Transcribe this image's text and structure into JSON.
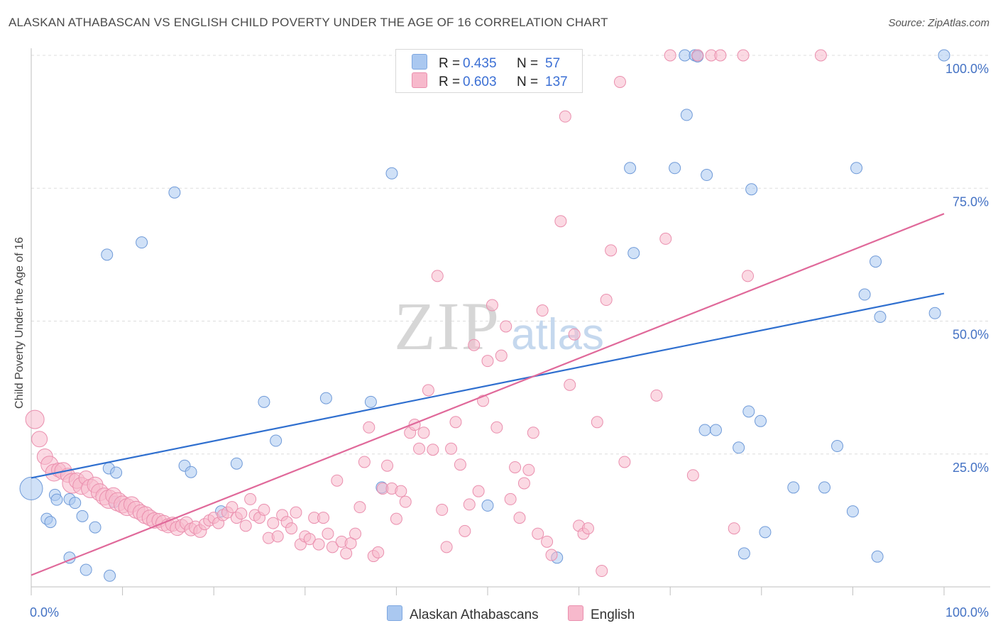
{
  "title": "ALASKAN ATHABASCAN VS ENGLISH CHILD POVERTY UNDER THE AGE OF 16 CORRELATION CHART",
  "source": "Source: ZipAtlas.com",
  "watermark": {
    "zip": "ZIP",
    "atlas": "atlas"
  },
  "legend": {
    "rows": [
      {
        "r_label": "R =",
        "r_value": "0.435",
        "n_label": "N =",
        "n_value": "57",
        "color": "#aac8f0",
        "border": "#7ea7e0"
      },
      {
        "r_label": "R =",
        "r_value": "0.603",
        "n_label": "N =",
        "n_value": "137",
        "color": "#f7b9cc",
        "border": "#ea8fae"
      }
    ]
  },
  "bottom_legend": [
    {
      "label": "Alaskan Athabascans",
      "color": "#aac8f0",
      "border": "#7ea7e0"
    },
    {
      "label": "English",
      "color": "#f7b9cc",
      "border": "#ea8fae"
    }
  ],
  "chart_data": {
    "type": "scatter",
    "xlabel": "",
    "ylabel": "Child Poverty Under the Age of 16",
    "xlim": [
      0,
      100
    ],
    "ylim": [
      0,
      100
    ],
    "x_tick_labels": [
      "0.0%",
      "100.0%"
    ],
    "y_tick_labels": [
      "25.0%",
      "50.0%",
      "75.0%",
      "100.0%"
    ],
    "y_ticks": [
      25,
      50,
      75,
      100
    ],
    "grid": true,
    "series": [
      {
        "name": "Alaskan Athabascans",
        "color": "#aac8f0",
        "stroke": "#6f9ad8",
        "line_color": "#2f6fcf",
        "trend": {
          "x": [
            0,
            100
          ],
          "y": [
            20.5,
            55.2
          ]
        },
        "points": [
          [
            0.0,
            18.5,
            16
          ],
          [
            1.7,
            12.8,
            8
          ],
          [
            2.1,
            12.2,
            8
          ],
          [
            2.6,
            17.3,
            8
          ],
          [
            2.8,
            16.4,
            8
          ],
          [
            4.2,
            5.5,
            8
          ],
          [
            4.2,
            16.5,
            8
          ],
          [
            4.8,
            15.8,
            8
          ],
          [
            5.6,
            13.3,
            8
          ],
          [
            6.0,
            3.2,
            8
          ],
          [
            7.0,
            11.2,
            8
          ],
          [
            8.5,
            22.3,
            8
          ],
          [
            8.3,
            62.5,
            8
          ],
          [
            8.6,
            2.1,
            8
          ],
          [
            9.1,
            16.0,
            8
          ],
          [
            9.3,
            21.5,
            8
          ],
          [
            12.1,
            64.8,
            8
          ],
          [
            15.7,
            74.2,
            8
          ],
          [
            16.8,
            22.8,
            8
          ],
          [
            17.5,
            21.6,
            8
          ],
          [
            20.8,
            14.2,
            8
          ],
          [
            22.5,
            23.2,
            8
          ],
          [
            25.5,
            34.8,
            8
          ],
          [
            26.8,
            27.5,
            8
          ],
          [
            32.3,
            35.5,
            8
          ],
          [
            37.2,
            34.8,
            8
          ],
          [
            38.4,
            18.7,
            8
          ],
          [
            39.5,
            77.8,
            8
          ],
          [
            50.0,
            15.3,
            8
          ],
          [
            57.6,
            5.5,
            8
          ],
          [
            65.6,
            78.8,
            8
          ],
          [
            66.0,
            62.8,
            8
          ],
          [
            70.5,
            78.8,
            8
          ],
          [
            71.6,
            100.0,
            8
          ],
          [
            71.8,
            88.8,
            8
          ],
          [
            72.7,
            100.0,
            8
          ],
          [
            73.0,
            100.0,
            8
          ],
          [
            73.0,
            99.8,
            8
          ],
          [
            73.8,
            29.5,
            8
          ],
          [
            74.0,
            77.5,
            8
          ],
          [
            75.0,
            29.5,
            8
          ],
          [
            77.5,
            26.2,
            8
          ],
          [
            78.1,
            6.3,
            8
          ],
          [
            78.6,
            33.0,
            8
          ],
          [
            78.9,
            74.8,
            8
          ],
          [
            79.9,
            31.2,
            8
          ],
          [
            80.4,
            10.3,
            8
          ],
          [
            83.5,
            18.7,
            8
          ],
          [
            86.9,
            18.7,
            8
          ],
          [
            88.3,
            26.5,
            8
          ],
          [
            90.0,
            14.2,
            8
          ],
          [
            90.4,
            78.8,
            8
          ],
          [
            91.3,
            55.0,
            8
          ],
          [
            92.5,
            61.2,
            8
          ],
          [
            92.7,
            5.7,
            8
          ],
          [
            93.0,
            50.8,
            8
          ],
          [
            99.0,
            51.5,
            8
          ],
          [
            100.0,
            100.0,
            8
          ]
        ]
      },
      {
        "name": "English",
        "color": "#f7b9cc",
        "stroke": "#ea8fae",
        "line_color": "#e0699a",
        "trend": {
          "x": [
            0,
            100
          ],
          "y": [
            2.2,
            70.2
          ]
        },
        "points": [
          [
            0.4,
            31.5,
            13
          ],
          [
            0.9,
            27.8,
            11
          ],
          [
            1.5,
            24.5,
            11
          ],
          [
            2.0,
            23.0,
            12
          ],
          [
            2.5,
            21.5,
            12
          ],
          [
            3.0,
            22.0,
            10
          ],
          [
            3.5,
            21.8,
            12
          ],
          [
            4.0,
            21.0,
            10
          ],
          [
            4.5,
            19.5,
            14
          ],
          [
            5.0,
            20.0,
            11
          ],
          [
            5.5,
            19.0,
            12
          ],
          [
            6.0,
            20.5,
            10
          ],
          [
            6.5,
            18.5,
            13
          ],
          [
            7.0,
            19.2,
            11
          ],
          [
            7.5,
            17.8,
            12
          ],
          [
            8.0,
            17.0,
            12
          ],
          [
            8.5,
            16.5,
            13
          ],
          [
            9.0,
            17.2,
            11
          ],
          [
            9.5,
            16.0,
            13
          ],
          [
            10.0,
            15.5,
            12
          ],
          [
            10.5,
            15.0,
            12
          ],
          [
            11.0,
            15.5,
            11
          ],
          [
            11.5,
            14.5,
            12
          ],
          [
            12.0,
            14.0,
            11
          ],
          [
            12.5,
            13.5,
            12
          ],
          [
            13.0,
            13.0,
            11
          ],
          [
            13.5,
            12.5,
            11
          ],
          [
            14.0,
            12.5,
            10
          ],
          [
            14.5,
            12.0,
            11
          ],
          [
            15.0,
            11.5,
            10
          ],
          [
            15.5,
            11.8,
            10
          ],
          [
            16.0,
            11.0,
            10
          ],
          [
            16.5,
            11.5,
            9
          ],
          [
            17.0,
            12.0,
            9
          ],
          [
            17.5,
            10.8,
            9
          ],
          [
            18.0,
            11.2,
            9
          ],
          [
            18.5,
            10.5,
            9
          ],
          [
            19.0,
            11.8,
            8
          ],
          [
            19.5,
            12.5,
            8
          ],
          [
            20.0,
            13.0,
            8
          ],
          [
            20.5,
            12.0,
            8
          ],
          [
            21.0,
            13.5,
            8
          ],
          [
            21.5,
            14.0,
            8
          ],
          [
            22.0,
            15.0,
            8
          ],
          [
            22.5,
            13.0,
            8
          ],
          [
            23.0,
            13.8,
            8
          ],
          [
            23.5,
            11.5,
            8
          ],
          [
            24.0,
            16.5,
            8
          ],
          [
            24.5,
            13.5,
            8
          ],
          [
            25.0,
            13.0,
            8
          ],
          [
            25.5,
            14.5,
            8
          ],
          [
            26.0,
            9.2,
            8
          ],
          [
            26.5,
            12.0,
            8
          ],
          [
            27.0,
            9.5,
            8
          ],
          [
            27.5,
            13.5,
            8
          ],
          [
            28.0,
            12.2,
            8
          ],
          [
            28.5,
            11.0,
            8
          ],
          [
            29.0,
            14.0,
            8
          ],
          [
            29.5,
            8.0,
            8
          ],
          [
            30.0,
            9.5,
            8
          ],
          [
            30.5,
            9.0,
            8
          ],
          [
            31.0,
            13.0,
            8
          ],
          [
            31.5,
            8.0,
            8
          ],
          [
            32.0,
            13.0,
            8
          ],
          [
            32.5,
            10.0,
            8
          ],
          [
            33.0,
            7.5,
            8
          ],
          [
            33.5,
            20.0,
            8
          ],
          [
            34.0,
            8.5,
            8
          ],
          [
            34.5,
            6.3,
            8
          ],
          [
            35.0,
            8.2,
            8
          ],
          [
            35.5,
            10.0,
            8
          ],
          [
            36.0,
            15.0,
            8
          ],
          [
            36.5,
            23.5,
            8
          ],
          [
            37.0,
            30.0,
            8
          ],
          [
            37.5,
            5.8,
            8
          ],
          [
            38.0,
            6.5,
            8
          ],
          [
            38.5,
            18.5,
            8
          ],
          [
            39.0,
            22.8,
            8
          ],
          [
            39.5,
            18.5,
            8
          ],
          [
            40.0,
            12.8,
            8
          ],
          [
            40.5,
            18.0,
            8
          ],
          [
            41.0,
            16.0,
            8
          ],
          [
            41.5,
            29.0,
            8
          ],
          [
            42.0,
            30.5,
            8
          ],
          [
            42.5,
            26.0,
            8
          ],
          [
            43.0,
            29.0,
            8
          ],
          [
            43.5,
            37.0,
            8
          ],
          [
            44.0,
            25.8,
            8
          ],
          [
            44.5,
            58.5,
            8
          ],
          [
            45.0,
            14.5,
            8
          ],
          [
            45.5,
            7.5,
            8
          ],
          [
            46.0,
            26.0,
            8
          ],
          [
            46.5,
            31.0,
            8
          ],
          [
            47.0,
            23.0,
            8
          ],
          [
            47.5,
            10.5,
            8
          ],
          [
            48.0,
            15.5,
            8
          ],
          [
            48.5,
            45.5,
            8
          ],
          [
            49.0,
            18.0,
            8
          ],
          [
            49.5,
            35.0,
            8
          ],
          [
            50.0,
            42.5,
            8
          ],
          [
            50.5,
            53.0,
            8
          ],
          [
            51.0,
            30.0,
            8
          ],
          [
            51.5,
            43.5,
            8
          ],
          [
            52.0,
            49.0,
            8
          ],
          [
            52.5,
            16.5,
            8
          ],
          [
            53.0,
            22.5,
            8
          ],
          [
            53.5,
            13.0,
            8
          ],
          [
            54.0,
            19.5,
            8
          ],
          [
            54.5,
            22.0,
            8
          ],
          [
            55.0,
            29.0,
            8
          ],
          [
            55.5,
            10.0,
            8
          ],
          [
            56.0,
            52.0,
            8
          ],
          [
            56.5,
            8.5,
            8
          ],
          [
            57.0,
            6.0,
            8
          ],
          [
            58.0,
            68.8,
            8
          ],
          [
            58.5,
            88.5,
            8
          ],
          [
            59.0,
            38.0,
            8
          ],
          [
            59.5,
            47.5,
            8
          ],
          [
            60.0,
            11.5,
            8
          ],
          [
            60.5,
            10.0,
            8
          ],
          [
            61.0,
            11.0,
            8
          ],
          [
            62.0,
            31.0,
            8
          ],
          [
            62.5,
            3.0,
            8
          ],
          [
            63.0,
            54.0,
            8
          ],
          [
            63.5,
            63.3,
            8
          ],
          [
            64.5,
            95.0,
            8
          ],
          [
            65.0,
            23.5,
            8
          ],
          [
            68.5,
            36.0,
            8
          ],
          [
            69.5,
            65.5,
            8
          ],
          [
            70.0,
            100.0,
            8
          ],
          [
            72.5,
            21.0,
            8
          ],
          [
            73.0,
            100.0,
            8
          ],
          [
            74.5,
            100.0,
            8
          ],
          [
            75.5,
            100.0,
            8
          ],
          [
            77.0,
            11.0,
            8
          ],
          [
            78.0,
            100.0,
            8
          ],
          [
            78.5,
            58.5,
            8
          ],
          [
            86.5,
            100.0,
            8
          ]
        ]
      }
    ]
  }
}
